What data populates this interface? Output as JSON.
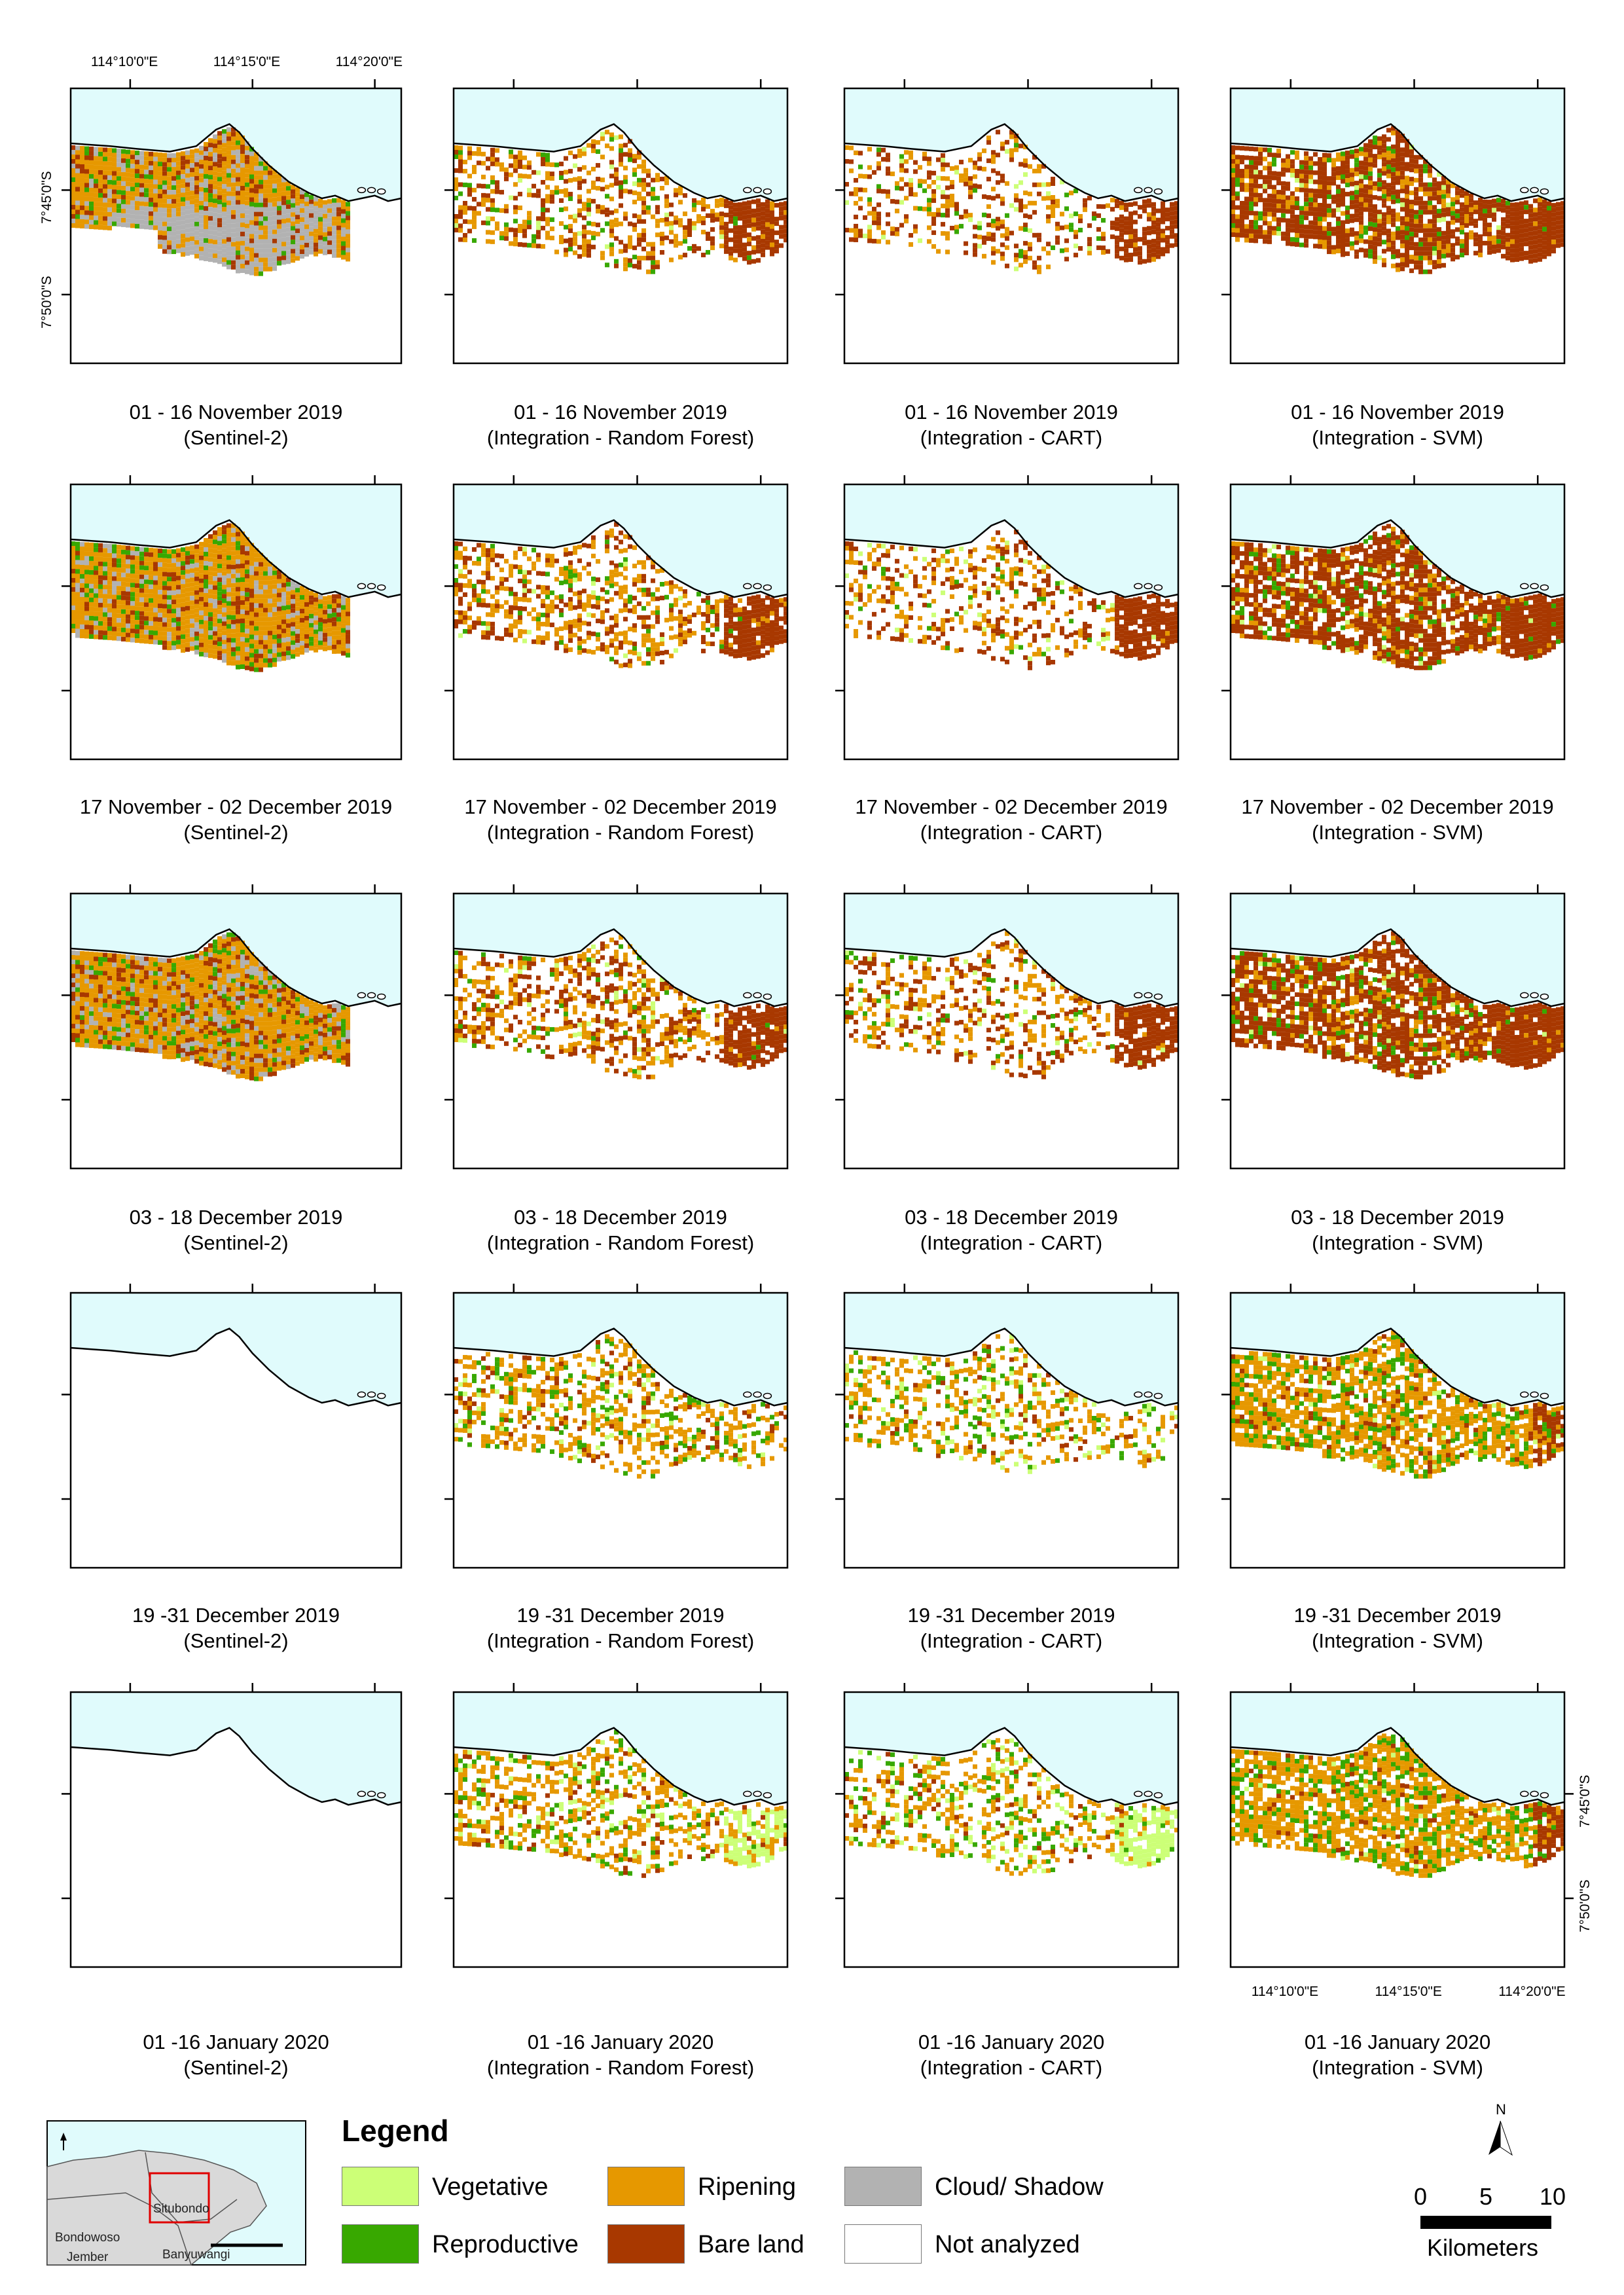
{
  "panels": [
    {
      "row": 0,
      "col": 0,
      "kind": "s2",
      "period": "01 - 16 November 2019",
      "method": "(Sentinel-2)"
    },
    {
      "row": 0,
      "col": 1,
      "kind": "rf",
      "period": "01 - 16 November 2019",
      "method": "(Integration - Random Forest)"
    },
    {
      "row": 0,
      "col": 2,
      "kind": "cart",
      "period": "01 - 16 November 2019",
      "method": "(Integration - CART)"
    },
    {
      "row": 0,
      "col": 3,
      "kind": "svm",
      "period": "01 - 16 November 2019",
      "method": "(Integration - SVM)"
    },
    {
      "row": 1,
      "col": 0,
      "kind": "s2",
      "period": "17 November - 02 December 2019",
      "method": "(Sentinel-2)"
    },
    {
      "row": 1,
      "col": 1,
      "kind": "rf",
      "period": "17 November - 02 December 2019",
      "method": "(Integration - Random Forest)"
    },
    {
      "row": 1,
      "col": 2,
      "kind": "cart",
      "period": "17 November - 02 December 2019",
      "method": "(Integration - CART)"
    },
    {
      "row": 1,
      "col": 3,
      "kind": "svm",
      "period": "17 November - 02 December 2019",
      "method": "(Integration - SVM)"
    },
    {
      "row": 2,
      "col": 0,
      "kind": "s2",
      "period": "03 - 18 December 2019",
      "method": "(Sentinel-2)"
    },
    {
      "row": 2,
      "col": 1,
      "kind": "rf",
      "period": "03 - 18 December 2019",
      "method": "(Integration - Random Forest)"
    },
    {
      "row": 2,
      "col": 2,
      "kind": "cart",
      "period": "03 - 18 December 2019",
      "method": "(Integration - CART)"
    },
    {
      "row": 2,
      "col": 3,
      "kind": "svm",
      "period": "03 - 18 December 2019",
      "method": "(Integration - SVM)"
    },
    {
      "row": 3,
      "col": 0,
      "kind": "empty",
      "period": "19 -31 December 2019",
      "method": "(Sentinel-2)"
    },
    {
      "row": 3,
      "col": 1,
      "kind": "rf",
      "period": "19 -31 December 2019",
      "method": "(Integration - Random Forest)"
    },
    {
      "row": 3,
      "col": 2,
      "kind": "cart",
      "period": "19 -31 December 2019",
      "method": "(Integration - CART)"
    },
    {
      "row": 3,
      "col": 3,
      "kind": "svm",
      "period": "19 -31 December 2019",
      "method": "(Integration - SVM)"
    },
    {
      "row": 4,
      "col": 0,
      "kind": "empty",
      "period": "01 -16 January 2020",
      "method": "(Sentinel-2)"
    },
    {
      "row": 4,
      "col": 1,
      "kind": "rf",
      "period": "01 -16 January 2020",
      "method": "(Integration - Random Forest)"
    },
    {
      "row": 4,
      "col": 2,
      "kind": "cart",
      "period": "01 -16 January 2020",
      "method": "(Integration - CART)"
    },
    {
      "row": 4,
      "col": 3,
      "kind": "svm",
      "period": "01 -16 January 2020",
      "method": "(Integration - SVM)"
    }
  ],
  "longitude_labels": [
    "114°10'0\"E",
    "114°15'0\"E",
    "114°20'0\"E"
  ],
  "latitude_labels": [
    "7°45'0\"S",
    "7°50'0\"S"
  ],
  "legend": {
    "title": "Legend",
    "items": [
      {
        "label": "Vegetative",
        "color": "#ccff77"
      },
      {
        "label": "Reproductive",
        "color": "#38a800"
      },
      {
        "label": "Ripening",
        "color": "#e69800"
      },
      {
        "label": "Bare land",
        "color": "#a83800"
      },
      {
        "label": "Cloud/ Shadow",
        "color": "#b2b2b2"
      },
      {
        "label": "Not analyzed",
        "color": "#ffffff"
      }
    ]
  },
  "scale_bar": {
    "ticks": [
      "0",
      "5",
      "10"
    ],
    "unit": "Kilometers"
  },
  "north_arrow": {
    "label": "N"
  },
  "inset_map": {
    "places": [
      "Situbondo",
      "Bondowoso",
      "Jember",
      "Banyuwangi"
    ]
  },
  "colors": {
    "sea": "#e0fbfc",
    "vegetative": "#ccff77",
    "reproductive": "#38a800",
    "ripening": "#e69800",
    "bare": "#a83800",
    "cloud": "#b2b2b2"
  }
}
